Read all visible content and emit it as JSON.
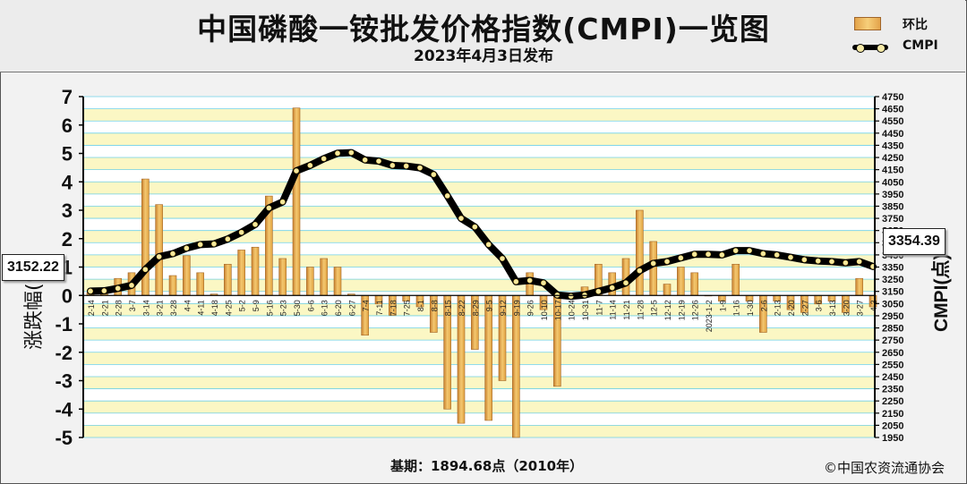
{
  "header": {
    "title": "中国磷酸一铵批发价格指数(CMPI)一览图",
    "subtitle": "2023年4月3日发布"
  },
  "legend": {
    "bar": "环比",
    "line": "CMPI"
  },
  "footer": {
    "base": "基期：1894.68点（2010年）",
    "copyright": "©中国农资流通协会"
  },
  "callouts": {
    "left": "3152.22",
    "right": "3354.39"
  },
  "colors": {
    "bar": "#e0a13f",
    "line": "#000000",
    "marker": "#f4e8a0",
    "band_yellow": "#fbf7c4",
    "grid": "#6fd0e6"
  },
  "chart_data": {
    "type": "bar+line",
    "ylabel_left": "涨跌幅(%)",
    "ylabel_right": "CMPI(点)",
    "ylim_left": [
      -5,
      7
    ],
    "ylim_right": [
      1950,
      4750
    ],
    "yticks_left": [
      -5,
      -4,
      -3,
      -2,
      -1,
      0,
      1,
      2,
      3,
      4,
      5,
      6,
      7
    ],
    "yticks_right": [
      1950,
      2050,
      2150,
      2250,
      2350,
      2450,
      2550,
      2650,
      2750,
      2850,
      2950,
      3050,
      3150,
      3250,
      3350,
      3450,
      3550,
      3650,
      3750,
      3850,
      3950,
      4050,
      4150,
      4250,
      4350,
      4450,
      4550,
      4650,
      4750
    ],
    "categories": [
      "2-14",
      "2-21",
      "2-28",
      "3-7",
      "3-14",
      "3-21",
      "3-28",
      "4-4",
      "4-11",
      "4-18",
      "4-25",
      "5-2",
      "5-9",
      "5-16",
      "5-23",
      "5-30",
      "6-6",
      "6-13",
      "6-20",
      "6-27",
      "7-4",
      "7-11",
      "7-18",
      "7-25",
      "8-1",
      "8-8",
      "8-15",
      "8-22",
      "8-29",
      "9-5",
      "9-12",
      "9-19",
      "9-26",
      "10-10",
      "10-17",
      "10-24",
      "10-31",
      "11-7",
      "11-14",
      "11-21",
      "11-28",
      "12-5",
      "12-12",
      "12-19",
      "12-26",
      "2023-1-2",
      "1-9",
      "1-16",
      "1-30",
      "2-6",
      "2-13",
      "2-20",
      "2-27",
      "3-6",
      "3-13",
      "3-20",
      "3-27",
      "4-3"
    ],
    "series": [
      {
        "name": "环比",
        "type": "bar",
        "values": [
          0.1,
          0.1,
          0.6,
          0.8,
          4.1,
          3.2,
          0.7,
          1.4,
          0.8,
          0.05,
          1.1,
          1.6,
          1.7,
          3.5,
          1.3,
          6.6,
          1.0,
          1.3,
          1.0,
          0.05,
          -1.4,
          -0.3,
          -0.7,
          -0.2,
          -0.4,
          -1.3,
          -4.0,
          -4.5,
          -1.9,
          -4.4,
          -3.0,
          -5.0,
          0.8,
          -0.5,
          -3.2,
          0.0,
          0.3,
          1.1,
          0.8,
          1.3,
          3.0,
          1.9,
          0.4,
          1.0,
          0.8,
          0.0,
          -0.2,
          1.1,
          -0.2,
          -1.3,
          -0.2,
          -0.5,
          -0.6,
          -0.3,
          -0.2,
          -0.6,
          0.6,
          -0.4
        ]
      },
      {
        "name": "CMPI",
        "type": "line",
        "values": [
          3152.22,
          3155,
          3175,
          3200,
          3330,
          3435,
          3460,
          3505,
          3535,
          3540,
          3580,
          3635,
          3700,
          3835,
          3885,
          4140,
          4185,
          4240,
          4285,
          4290,
          4230,
          4220,
          4185,
          4180,
          4165,
          4110,
          3935,
          3750,
          3680,
          3535,
          3420,
          3230,
          3240,
          3220,
          3120,
          3110,
          3120,
          3150,
          3180,
          3220,
          3320,
          3380,
          3395,
          3425,
          3455,
          3455,
          3450,
          3485,
          3485,
          3460,
          3450,
          3430,
          3410,
          3400,
          3395,
          3385,
          3395,
          3354.39
        ]
      }
    ]
  }
}
